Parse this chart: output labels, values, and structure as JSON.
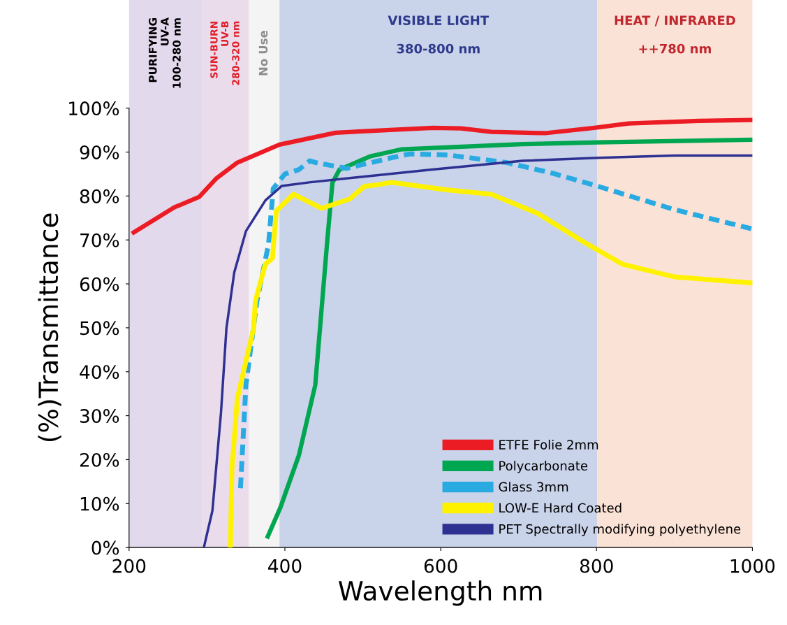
{
  "chart_data": {
    "type": "line",
    "xlabel": "Wavelength nm",
    "ylabel": "(%)Transmittance",
    "xlim": [
      200,
      1000
    ],
    "xticks": [
      200,
      400,
      600,
      800,
      1000
    ],
    "ylim": [
      0,
      100
    ],
    "yticks": [
      {
        "value": 0,
        "label": "0%"
      },
      {
        "value": 10,
        "label": "10%"
      },
      {
        "value": 20,
        "label": "20%"
      },
      {
        "value": 30,
        "label": "30%"
      },
      {
        "value": 40,
        "label": "40%"
      },
      {
        "value": 50,
        "label": "50%"
      },
      {
        "value": 60,
        "label": "60%"
      },
      {
        "value": 70,
        "label": "70%"
      },
      {
        "value": 80,
        "label": "80%"
      },
      {
        "value": 90,
        "label": "90%"
      },
      {
        "value": 100,
        "label": "100%"
      }
    ],
    "grid": false,
    "legend": "bottom right",
    "marker": "none",
    "bands": [
      {
        "axis": "x",
        "from": 200,
        "to": 294,
        "label": "PURIFYING\nUV-A\n100-280 nm",
        "color": "#e2d9ec"
      },
      {
        "axis": "x",
        "from": 294,
        "to": 354,
        "label": "SUN-BURN\nUV-B\n280-320 nm",
        "color": "#ebdcec"
      },
      {
        "axis": "x",
        "from": 354,
        "to": 393,
        "label": "No Use",
        "color": "#f4f4f4"
      },
      {
        "axis": "x",
        "from": 393,
        "to": 801,
        "label": "VISIBLE LIGHT\n\n380-800 nm",
        "color": "#c9d3ea"
      },
      {
        "axis": "x",
        "from": 801,
        "to": 1000,
        "label": "HEAT / INFRARED\n\n++780 nm",
        "color": "#fbe2d7"
      }
    ],
    "series": [
      {
        "name": "ETFE Folie 2mm",
        "color": "#ec1c24",
        "line_style": "solid",
        "x": [
          206,
          258,
          290,
          312,
          339,
          393,
          465,
          590,
          626,
          665,
          734,
          797,
          841,
          931,
          1000
        ],
        "values": [
          71.7,
          77.4,
          79.8,
          84,
          87.6,
          91.7,
          94.4,
          95.5,
          95.4,
          94.6,
          94.3,
          95.5,
          96.5,
          97.1,
          97.3
        ]
      },
      {
        "name": "Polycarbonate",
        "color": "#00a650",
        "line_style": "solid",
        "x": [
          378,
          394,
          418,
          439,
          454,
          461,
          470,
          509,
          549,
          705,
          802,
          1000
        ],
        "values": [
          2.5,
          9,
          21,
          37,
          69,
          83,
          86,
          89,
          90.6,
          91.8,
          92.2,
          92.8
        ]
      },
      {
        "name": "Glass 3mm",
        "color": "#29abe2",
        "line_style": "dashed",
        "x": [
          343,
          350,
          364,
          379,
          385,
          400,
          418,
          432,
          440,
          479,
          537,
          561,
          611,
          685,
          743,
          802,
          900,
          1000
        ],
        "values": [
          13.5,
          37,
          56,
          69,
          81.7,
          85,
          86,
          88,
          87.6,
          86.3,
          88.7,
          89.6,
          89.3,
          87.6,
          85.2,
          82.2,
          76.9,
          72.5
        ]
      },
      {
        "name": "LOW-E Hard Coated",
        "color": "#fff200",
        "line_style": "solid",
        "x": [
          330,
          332,
          339,
          360,
          362,
          375,
          384,
          389,
          411,
          447,
          483,
          502,
          517,
          537,
          607,
          665,
          725,
          783,
          833,
          900,
          1000
        ],
        "values": [
          0,
          18,
          34,
          50,
          56,
          64.5,
          65.8,
          76.6,
          80.4,
          77.2,
          79.3,
          82.2,
          82.5,
          83.1,
          81.4,
          80.4,
          76,
          69.6,
          64.5,
          61.6,
          60.2
        ]
      },
      {
        "name": "PET Spectrally modifying polyethylene",
        "color": "#2e3192",
        "line_style": "solid",
        "x": [
          296,
          307,
          318,
          325,
          335,
          350,
          375,
          396,
          431,
          587,
          705,
          802,
          900,
          1000
        ],
        "values": [
          0,
          8.4,
          30.7,
          50,
          62.6,
          72,
          79,
          82.3,
          83.1,
          86,
          88,
          88.7,
          89.2,
          89.2
        ]
      }
    ]
  }
}
